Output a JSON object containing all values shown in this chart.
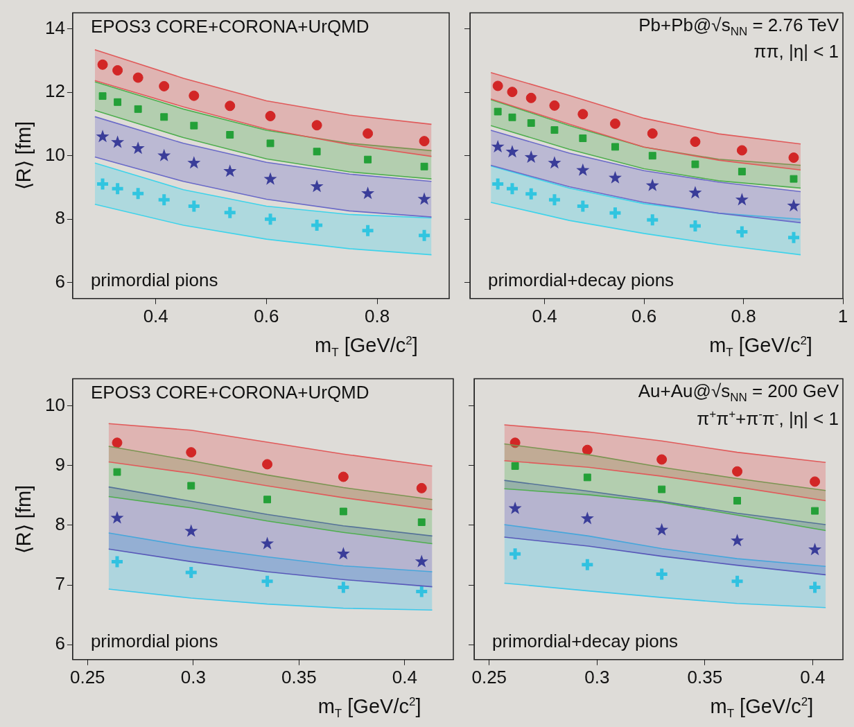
{
  "chart_data": [
    {
      "type": "scatter",
      "title": "EPOS3 CORE+CORONA+UrQMD",
      "annotations": [
        "primordial pions"
      ],
      "xlabel": "m$_{T}$ [GeV/c$^{2}$]",
      "ylabel": "⟨R⟩ [fm]",
      "xlim": [
        0.25,
        0.93
      ],
      "ylim": [
        5.5,
        14.5
      ],
      "xticks": [
        0.4,
        0.6,
        0.8
      ],
      "yticks": [
        6,
        8,
        10,
        12,
        14
      ],
      "series": [
        {
          "type": "line",
          "color": "#e05a5a",
          "x": [
            0.29,
            0.45,
            0.6,
            0.75,
            0.898
          ],
          "values": [
            12.37,
            11.54,
            10.84,
            10.35,
            9.98
          ]
        },
        {
          "type": "area",
          "color": "#e05a5a",
          "x": [
            0.29,
            0.45,
            0.6,
            0.75,
            0.898
          ],
          "values": [
            13.34,
            12.44,
            11.73,
            11.28,
            10.99
          ]
        },
        {
          "type": "line",
          "color": "#4fae4f",
          "x": [
            0.29,
            0.45,
            0.6,
            0.75,
            0.898
          ],
          "values": [
            11.43,
            10.57,
            9.9,
            9.49,
            9.27
          ]
        },
        {
          "type": "area",
          "color": "#4fae4f",
          "x": [
            0.29,
            0.45,
            0.6,
            0.75,
            0.898
          ],
          "values": [
            12.33,
            11.47,
            10.8,
            10.39,
            10.16
          ]
        },
        {
          "type": "line",
          "color": "#6a6ac8",
          "x": [
            0.29,
            0.45,
            0.6,
            0.75,
            0.898
          ],
          "values": [
            9.96,
            9.19,
            8.63,
            8.26,
            8.07
          ]
        },
        {
          "type": "area",
          "color": "#6a6ac8",
          "x": [
            0.29,
            0.45,
            0.6,
            0.75,
            0.898
          ],
          "values": [
            11.23,
            10.39,
            9.79,
            9.42,
            9.19
          ]
        },
        {
          "type": "line",
          "color": "#3fd3ea",
          "x": [
            0.29,
            0.45,
            0.6,
            0.75,
            0.898
          ],
          "values": [
            8.47,
            7.81,
            7.37,
            7.07,
            6.88
          ]
        },
        {
          "type": "area",
          "color": "#3fd3ea",
          "x": [
            0.29,
            0.45,
            0.6,
            0.75,
            0.898
          ],
          "values": [
            9.77,
            8.93,
            8.41,
            8.15,
            8.04
          ]
        },
        {
          "type": "scatter",
          "marker": "circle",
          "color": "#cc1111",
          "x": [
            0.304,
            0.331,
            0.368,
            0.415,
            0.469,
            0.534,
            0.607,
            0.691,
            0.783,
            0.885
          ],
          "values": [
            12.87,
            12.69,
            12.46,
            12.19,
            11.89,
            11.57,
            11.25,
            10.96,
            10.7,
            10.46
          ]
        },
        {
          "type": "scatter",
          "marker": "square",
          "color": "#129a2e",
          "x": [
            0.304,
            0.331,
            0.368,
            0.415,
            0.469,
            0.534,
            0.607,
            0.691,
            0.783,
            0.885
          ],
          "values": [
            11.88,
            11.69,
            11.47,
            11.22,
            10.95,
            10.66,
            10.39,
            10.13,
            9.88,
            9.66
          ]
        },
        {
          "type": "scatter",
          "marker": "star",
          "color": "#3a3d99",
          "x": [
            0.304,
            0.331,
            0.368,
            0.415,
            0.469,
            0.534,
            0.607,
            0.691,
            0.783,
            0.885
          ],
          "values": [
            10.6,
            10.42,
            10.23,
            10.0,
            9.77,
            9.51,
            9.26,
            9.03,
            8.81,
            8.63
          ]
        },
        {
          "type": "scatter",
          "marker": "cross",
          "color": "#2cbfdc",
          "x": [
            0.304,
            0.331,
            0.368,
            0.415,
            0.469,
            0.534,
            0.607,
            0.691,
            0.783,
            0.885
          ],
          "values": [
            9.11,
            8.96,
            8.81,
            8.61,
            8.41,
            8.21,
            8.0,
            7.81,
            7.64,
            7.49
          ]
        }
      ]
    },
    {
      "type": "scatter",
      "annotations": [
        "Pb+Pb@√s$_{NN}$ = 2.76 TeV",
        "ππ, |η| < 1",
        "primordial+decay pions"
      ],
      "xlabel": "m$_{T}$ [GeV/c$^{2}$]",
      "xlim": [
        0.25,
        1.0
      ],
      "ylim": [
        5.5,
        14.5
      ],
      "xticks": [
        0.4,
        0.6,
        0.8,
        1
      ],
      "yticks": [
        6,
        8,
        10,
        12,
        14
      ],
      "tick_labels": "x",
      "series": [
        {
          "type": "line",
          "color": "#e05a5a",
          "x": [
            0.292,
            0.45,
            0.6,
            0.75,
            0.915
          ],
          "values": [
            11.79,
            10.99,
            10.27,
            9.86,
            9.55
          ]
        },
        {
          "type": "area",
          "color": "#e05a5a",
          "x": [
            0.292,
            0.45,
            0.6,
            0.75,
            0.915
          ],
          "values": [
            12.62,
            11.9,
            11.18,
            10.69,
            10.37
          ]
        },
        {
          "type": "line",
          "color": "#4fae4f",
          "x": [
            0.292,
            0.45,
            0.6,
            0.75,
            0.915
          ],
          "values": [
            10.95,
            10.2,
            9.59,
            9.21,
            8.98
          ]
        },
        {
          "type": "area",
          "color": "#4fae4f",
          "x": [
            0.292,
            0.45,
            0.6,
            0.75,
            0.915
          ],
          "values": [
            11.77,
            10.95,
            10.27,
            9.89,
            9.7
          ]
        },
        {
          "type": "line",
          "color": "#6a6ac8",
          "x": [
            0.292,
            0.45,
            0.6,
            0.75,
            0.915
          ],
          "values": [
            9.7,
            9.02,
            8.53,
            8.19,
            7.89
          ]
        },
        {
          "type": "area",
          "color": "#6a6ac8",
          "x": [
            0.292,
            0.45,
            0.6,
            0.75,
            0.915
          ],
          "values": [
            10.8,
            10.08,
            9.53,
            9.17,
            8.87
          ]
        },
        {
          "type": "line",
          "color": "#3fd3ea",
          "x": [
            0.292,
            0.45,
            0.6,
            0.75,
            0.915
          ],
          "values": [
            8.53,
            7.96,
            7.55,
            7.2,
            6.88
          ]
        },
        {
          "type": "area",
          "color": "#3fd3ea",
          "x": [
            0.292,
            0.45,
            0.6,
            0.75,
            0.915
          ],
          "values": [
            9.68,
            8.98,
            8.49,
            8.19,
            8.0
          ]
        },
        {
          "type": "scatter",
          "marker": "circle",
          "color": "#cc1111",
          "x": [
            0.306,
            0.335,
            0.373,
            0.42,
            0.477,
            0.542,
            0.617,
            0.703,
            0.797,
            0.901
          ],
          "values": [
            12.2,
            12.01,
            11.82,
            11.58,
            11.31,
            11.01,
            10.7,
            10.44,
            10.17,
            9.94
          ]
        },
        {
          "type": "scatter",
          "marker": "square",
          "color": "#129a2e",
          "x": [
            0.306,
            0.335,
            0.373,
            0.42,
            0.477,
            0.542,
            0.617,
            0.703,
            0.797,
            0.901
          ],
          "values": [
            11.39,
            11.21,
            11.03,
            10.81,
            10.55,
            10.28,
            10.0,
            9.73,
            9.5,
            9.27
          ]
        },
        {
          "type": "scatter",
          "marker": "star",
          "color": "#3a3d99",
          "x": [
            0.306,
            0.335,
            0.373,
            0.42,
            0.477,
            0.542,
            0.617,
            0.703,
            0.797,
            0.901
          ],
          "values": [
            10.28,
            10.12,
            9.95,
            9.77,
            9.54,
            9.3,
            9.06,
            8.83,
            8.61,
            8.42
          ]
        },
        {
          "type": "scatter",
          "marker": "cross",
          "color": "#2cbfdc",
          "x": [
            0.306,
            0.335,
            0.373,
            0.42,
            0.477,
            0.542,
            0.617,
            0.703,
            0.797,
            0.901
          ],
          "values": [
            9.11,
            8.96,
            8.8,
            8.61,
            8.41,
            8.2,
            7.98,
            7.79,
            7.6,
            7.42
          ]
        }
      ]
    },
    {
      "type": "scatter",
      "title": "EPOS3 CORE+CORONA+UrQMD",
      "annotations": [
        "primordial pions"
      ],
      "xlabel": "m$_{T}$ [GeV/c$^{2}$]",
      "ylabel": "⟨R⟩ [fm]",
      "xlim": [
        0.243,
        0.423
      ],
      "ylim": [
        5.75,
        10.45
      ],
      "xticks": [
        0.25,
        0.3,
        0.35,
        0.4
      ],
      "yticks": [
        6,
        7,
        8,
        9,
        10
      ],
      "series": [
        {
          "type": "line",
          "color": "#e05a5a",
          "x": [
            0.26,
            0.299,
            0.335,
            0.371,
            0.413
          ],
          "values": [
            9.06,
            8.87,
            8.66,
            8.46,
            8.26
          ]
        },
        {
          "type": "area",
          "color": "#e05a5a",
          "x": [
            0.26,
            0.299,
            0.335,
            0.371,
            0.413
          ],
          "values": [
            9.7,
            9.59,
            9.39,
            9.19,
            8.99
          ]
        },
        {
          "type": "line",
          "color": "#4fae4f",
          "x": [
            0.26,
            0.299,
            0.335,
            0.371,
            0.413
          ],
          "values": [
            8.48,
            8.29,
            8.07,
            7.88,
            7.69
          ]
        },
        {
          "type": "area",
          "color": "#4fae4f",
          "x": [
            0.26,
            0.299,
            0.335,
            0.371,
            0.413
          ],
          "values": [
            9.32,
            9.08,
            8.84,
            8.63,
            8.43
          ]
        },
        {
          "type": "line",
          "color": "#5858b8",
          "x": [
            0.26,
            0.299,
            0.335,
            0.371,
            0.413
          ],
          "values": [
            7.6,
            7.39,
            7.22,
            7.09,
            6.97
          ]
        },
        {
          "type": "area",
          "color": "#5858b8",
          "x": [
            0.26,
            0.299,
            0.335,
            0.371,
            0.413
          ],
          "values": [
            8.64,
            8.4,
            8.18,
            7.99,
            7.82
          ]
        },
        {
          "type": "line",
          "color": "#3fc8ea",
          "x": [
            0.26,
            0.299,
            0.335,
            0.371,
            0.413
          ],
          "values": [
            6.93,
            6.78,
            6.68,
            6.61,
            6.58
          ]
        },
        {
          "type": "area",
          "color": "#3fc8ea",
          "x": [
            0.26,
            0.299,
            0.335,
            0.371,
            0.413
          ],
          "values": [
            7.87,
            7.64,
            7.47,
            7.32,
            7.22
          ]
        },
        {
          "type": "scatter",
          "marker": "circle",
          "color": "#cc1111",
          "x": [
            0.264,
            0.299,
            0.335,
            0.371,
            0.408
          ],
          "values": [
            9.38,
            9.22,
            9.02,
            8.81,
            8.62
          ]
        },
        {
          "type": "scatter",
          "marker": "square",
          "color": "#129a2e",
          "x": [
            0.264,
            0.299,
            0.335,
            0.371,
            0.408
          ],
          "values": [
            8.89,
            8.66,
            8.43,
            8.23,
            8.05
          ]
        },
        {
          "type": "scatter",
          "marker": "star",
          "color": "#3a3d99",
          "x": [
            0.264,
            0.299,
            0.335,
            0.371,
            0.408
          ],
          "values": [
            8.12,
            7.9,
            7.69,
            7.52,
            7.39
          ]
        },
        {
          "type": "scatter",
          "marker": "cross",
          "color": "#2cbfdc",
          "x": [
            0.264,
            0.299,
            0.335,
            0.371,
            0.408
          ],
          "values": [
            7.39,
            7.21,
            7.06,
            6.96,
            6.89
          ]
        }
      ]
    },
    {
      "type": "scatter",
      "annotations": [
        "Au+Au@√s$_{NN}$ = 200 GeV",
        "π$^{+}$π$^{+}$+π$^{-}$π$^{-}$, |η| < 1",
        "primordial+decay pions"
      ],
      "xlabel": "m$_{T}$ [GeV/c$^{2}$]",
      "xlim": [
        0.243,
        0.414
      ],
      "ylim": [
        5.75,
        10.45
      ],
      "xticks": [
        0.25,
        0.3,
        0.35,
        0.4
      ],
      "yticks": [
        6,
        7,
        8,
        9,
        10
      ],
      "tick_labels": "x",
      "series": [
        {
          "type": "line",
          "color": "#e05a5a",
          "x": [
            0.257,
            0.296,
            0.33,
            0.365,
            0.406
          ],
          "values": [
            9.08,
            8.97,
            8.82,
            8.64,
            8.41
          ]
        },
        {
          "type": "area",
          "color": "#e05a5a",
          "x": [
            0.257,
            0.296,
            0.33,
            0.365,
            0.406
          ],
          "values": [
            9.68,
            9.56,
            9.41,
            9.22,
            9.05
          ]
        },
        {
          "type": "line",
          "color": "#4fae4f",
          "x": [
            0.257,
            0.296,
            0.33,
            0.365,
            0.406
          ],
          "values": [
            8.61,
            8.51,
            8.38,
            8.17,
            7.91
          ]
        },
        {
          "type": "area",
          "color": "#4fae4f",
          "x": [
            0.257,
            0.296,
            0.33,
            0.365,
            0.406
          ],
          "values": [
            9.36,
            9.18,
            8.97,
            8.78,
            8.58
          ]
        },
        {
          "type": "line",
          "color": "#5858b8",
          "x": [
            0.257,
            0.296,
            0.33,
            0.365,
            0.406
          ],
          "values": [
            7.8,
            7.65,
            7.48,
            7.33,
            7.17
          ]
        },
        {
          "type": "area",
          "color": "#5858b8",
          "x": [
            0.257,
            0.296,
            0.33,
            0.365,
            0.406
          ],
          "values": [
            8.75,
            8.57,
            8.4,
            8.2,
            8.01
          ]
        },
        {
          "type": "line",
          "color": "#3fc8ea",
          "x": [
            0.257,
            0.296,
            0.33,
            0.365,
            0.406
          ],
          "values": [
            7.03,
            6.9,
            6.79,
            6.69,
            6.62
          ]
        },
        {
          "type": "area",
          "color": "#3fc8ea",
          "x": [
            0.257,
            0.296,
            0.33,
            0.365,
            0.406
          ],
          "values": [
            8.01,
            7.82,
            7.61,
            7.44,
            7.31
          ]
        },
        {
          "type": "scatter",
          "marker": "circle",
          "color": "#cc1111",
          "x": [
            0.262,
            0.2955,
            0.33,
            0.365,
            0.401
          ],
          "values": [
            9.38,
            9.26,
            9.1,
            8.9,
            8.73
          ]
        },
        {
          "type": "scatter",
          "marker": "square",
          "color": "#129a2e",
          "x": [
            0.262,
            0.2955,
            0.33,
            0.365,
            0.401
          ],
          "values": [
            8.99,
            8.8,
            8.6,
            8.41,
            8.24
          ]
        },
        {
          "type": "scatter",
          "marker": "star",
          "color": "#3a3d99",
          "x": [
            0.262,
            0.2955,
            0.33,
            0.365,
            0.401
          ],
          "values": [
            8.28,
            8.11,
            7.92,
            7.74,
            7.59
          ]
        },
        {
          "type": "scatter",
          "marker": "cross",
          "color": "#2cbfdc",
          "x": [
            0.262,
            0.2955,
            0.33,
            0.365,
            0.401
          ],
          "values": [
            7.52,
            7.34,
            7.18,
            7.06,
            6.96
          ]
        }
      ]
    }
  ]
}
